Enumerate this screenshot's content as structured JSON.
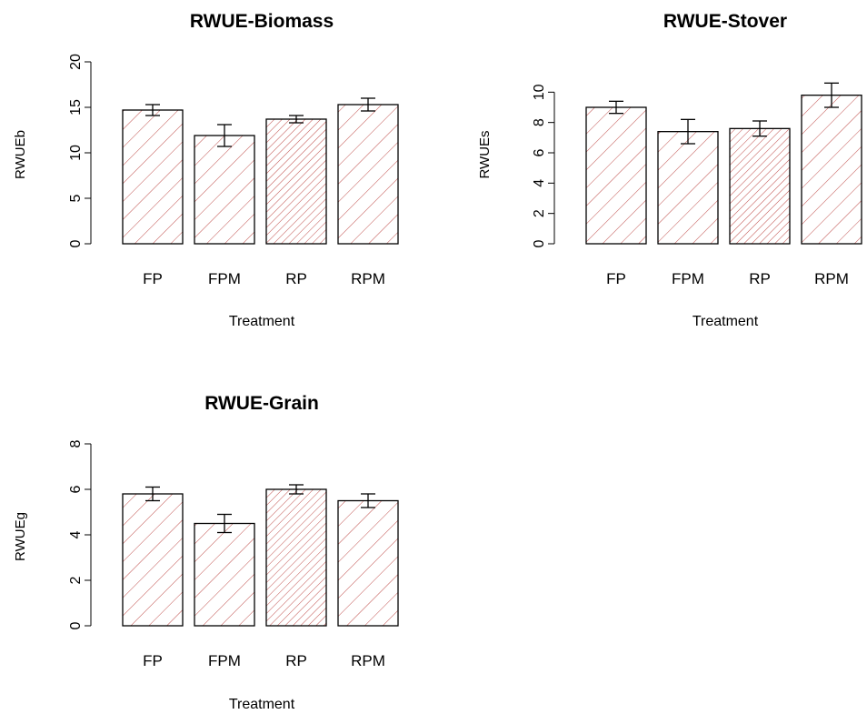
{
  "style": {
    "bar_hatch_color": "#c0504d",
    "bar_outline_color": "#000000",
    "background": "#ffffff"
  },
  "chart_data": [
    {
      "type": "bar",
      "title": "RWUE-Biomass",
      "xlabel": "Treatment",
      "ylabel": "RWUEb",
      "categories": [
        "FP",
        "FPM",
        "RP",
        "RPM"
      ],
      "values": [
        14.7,
        11.9,
        13.7,
        15.3
      ],
      "error": [
        0.6,
        1.2,
        0.4,
        0.7
      ],
      "hatch_density": [
        "sparse",
        "sparse",
        "dense",
        "sparse"
      ],
      "ylim": [
        0,
        20
      ],
      "yticks": [
        0,
        5,
        10,
        15,
        20
      ],
      "grid": false
    },
    {
      "type": "bar",
      "title": "RWUE-Stover",
      "xlabel": "Treatment",
      "ylabel": "RWUEs",
      "categories": [
        "FP",
        "FPM",
        "RP",
        "RPM"
      ],
      "values": [
        9.0,
        7.4,
        7.6,
        9.8
      ],
      "error": [
        0.4,
        0.8,
        0.5,
        0.8
      ],
      "hatch_density": [
        "sparse",
        "sparse",
        "dense",
        "sparse"
      ],
      "ylim": [
        0,
        12
      ],
      "yticks": [
        0,
        2,
        4,
        6,
        8,
        10
      ],
      "grid": false
    },
    {
      "type": "bar",
      "title": "RWUE-Grain",
      "xlabel": "Treatment",
      "ylabel": "RWUEg",
      "categories": [
        "FP",
        "FPM",
        "RP",
        "RPM"
      ],
      "values": [
        5.8,
        4.5,
        6.0,
        5.5
      ],
      "error": [
        0.3,
        0.4,
        0.2,
        0.3
      ],
      "hatch_density": [
        "sparse",
        "sparse",
        "dense",
        "sparse"
      ],
      "ylim": [
        0,
        8
      ],
      "yticks": [
        0,
        2,
        4,
        6,
        8
      ],
      "grid": false
    }
  ]
}
